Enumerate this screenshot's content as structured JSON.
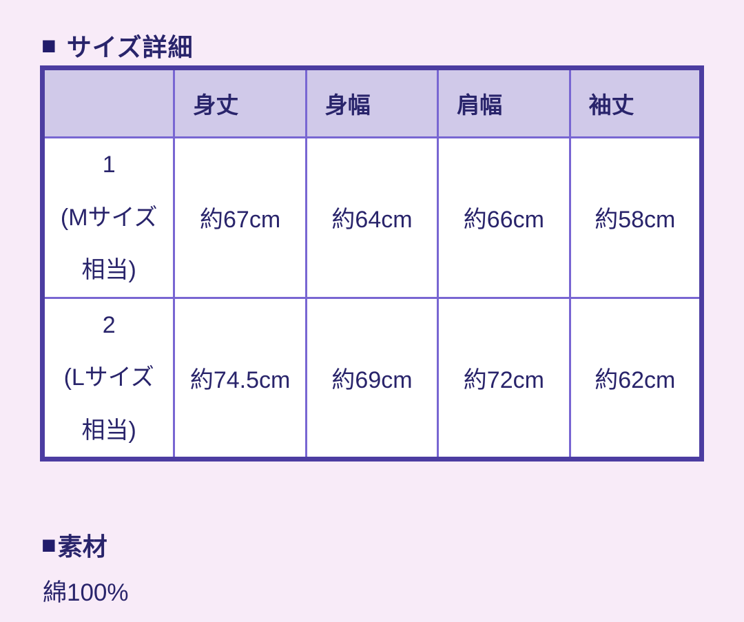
{
  "colors": {
    "page_background": "#f8ebf8",
    "table_outer_border": "#4c3da1",
    "table_grid": "#7866d2",
    "header_background": "#d0c9e9",
    "text": "#29246b"
  },
  "size_section": {
    "marker": "■",
    "title": "サイズ詳細",
    "table": {
      "headers": [
        "",
        "身丈",
        "身幅",
        "肩幅",
        "袖丈"
      ],
      "rows": [
        {
          "label_num": "1",
          "label_note": "(Mサイズ相当)",
          "values": [
            "約67cm",
            "約64cm",
            "約66cm",
            "約58cm"
          ]
        },
        {
          "label_num": "2",
          "label_note": "(Lサイズ相当)",
          "values": [
            "約74.5cm",
            "約69cm",
            "約72cm",
            "約62cm"
          ]
        }
      ]
    }
  },
  "material_section": {
    "marker": "■",
    "title": "素材",
    "value": "綿100%"
  }
}
